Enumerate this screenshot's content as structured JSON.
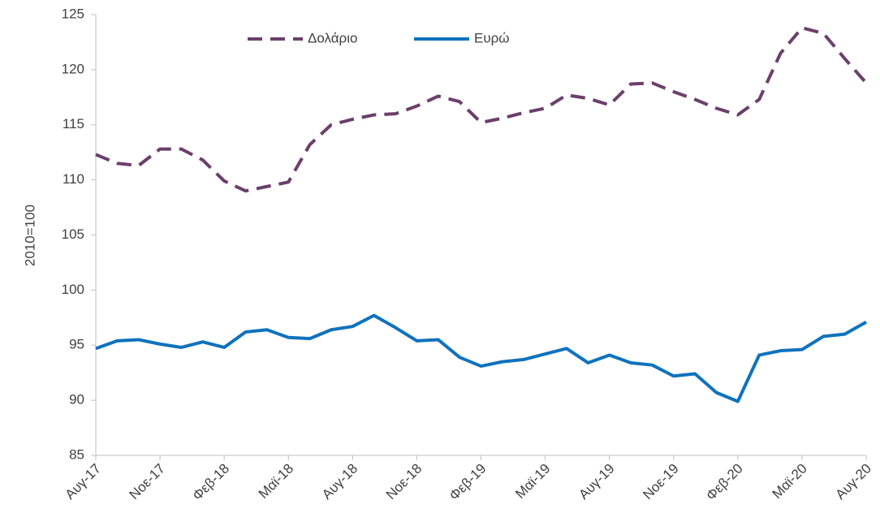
{
  "chart_data": {
    "type": "line",
    "ylabel": "2010=100",
    "categories": [
      "Αυγ-17",
      null,
      null,
      "Νοε-17",
      null,
      null,
      "Φεβ-18",
      null,
      null,
      "Μαϊ-18",
      null,
      null,
      "Αυγ-18",
      null,
      null,
      "Νοε-18",
      null,
      null,
      "Φεβ-19",
      null,
      null,
      "Μαϊ-19",
      null,
      null,
      "Αυγ-19",
      null,
      null,
      "Νοε-19",
      null,
      null,
      "Φεβ-20",
      null,
      null,
      "Μαϊ-20",
      null,
      null,
      "Αυγ-20"
    ],
    "series": [
      {
        "name": "Δολάριο",
        "color": "#6b3f6b",
        "dash": true,
        "values": [
          112.3,
          111.5,
          111.3,
          112.8,
          112.8,
          111.8,
          109.9,
          109.0,
          109.4,
          109.8,
          113.2,
          115.0,
          115.5,
          115.9,
          116.0,
          116.7,
          117.6,
          117.1,
          115.2,
          115.6,
          116.1,
          116.5,
          117.7,
          117.4,
          116.8,
          118.7,
          118.8,
          118.0,
          117.3,
          116.5,
          115.9,
          117.3,
          121.5,
          123.8,
          123.3,
          121.0,
          118.8
        ]
      },
      {
        "name": "Ευρώ",
        "color": "#0f72bd",
        "dash": false,
        "values": [
          94.7,
          95.4,
          95.5,
          95.1,
          94.8,
          95.3,
          94.8,
          96.2,
          96.4,
          95.7,
          95.6,
          96.4,
          96.7,
          97.7,
          96.6,
          95.4,
          95.5,
          93.9,
          93.1,
          93.5,
          93.7,
          94.2,
          94.7,
          93.4,
          94.1,
          93.4,
          93.2,
          92.2,
          92.4,
          90.7,
          89.9,
          94.1,
          94.5,
          94.6,
          95.8,
          96.0,
          97.1
        ]
      }
    ],
    "ylim": [
      85,
      125
    ],
    "yticks": [
      85,
      90,
      95,
      100,
      105,
      110,
      115,
      120,
      125
    ],
    "grid": false,
    "legend": "top"
  }
}
